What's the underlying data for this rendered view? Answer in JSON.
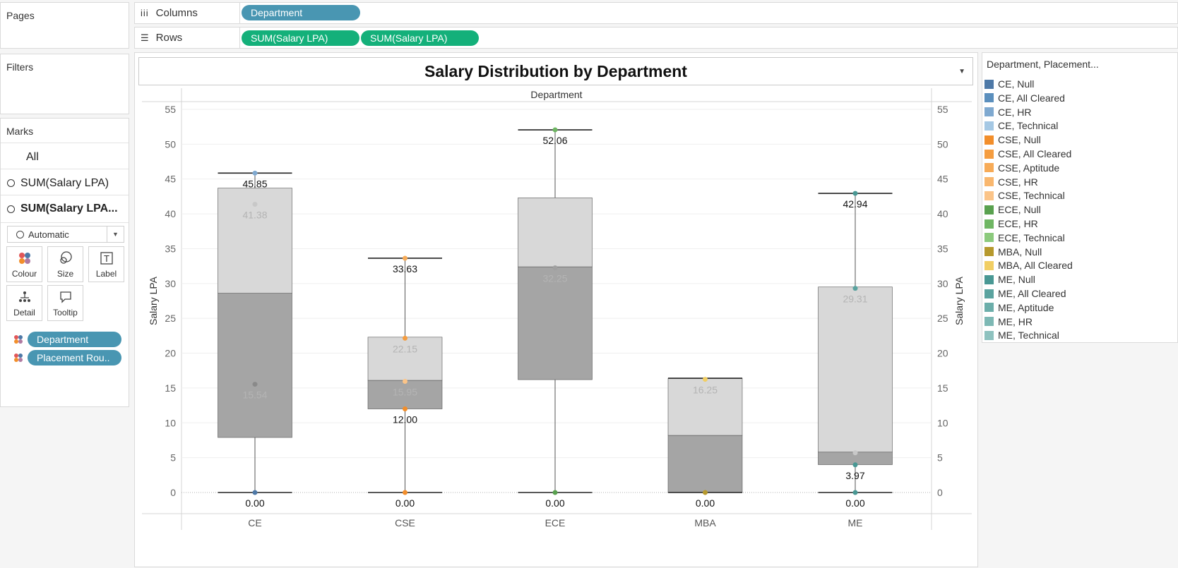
{
  "pages": {
    "title": "Pages"
  },
  "filters": {
    "title": "Filters"
  },
  "marks": {
    "title": "Marks",
    "rows": [
      "All",
      "SUM(Salary LPA)",
      "SUM(Salary LPA..."
    ],
    "mark_type": "Automatic",
    "buttons": [
      "Colour",
      "Size",
      "Label",
      "Detail",
      "Tooltip"
    ],
    "pills": [
      "Department",
      "Placement Rou.."
    ]
  },
  "shelves": {
    "columns": {
      "label": "Columns",
      "pills": [
        "Department"
      ]
    },
    "rows": {
      "label": "Rows",
      "pills": [
        "SUM(Salary LPA)",
        "SUM(Salary LPA)"
      ]
    }
  },
  "legend": {
    "title": "Department, Placement...",
    "items": [
      {
        "label": "CE, Null",
        "color": "#4e79a7"
      },
      {
        "label": "CE, All Cleared",
        "color": "#5b8fbd"
      },
      {
        "label": "CE, HR",
        "color": "#7fa9d0"
      },
      {
        "label": "CE, Technical",
        "color": "#a5c8e4"
      },
      {
        "label": "CSE, Null",
        "color": "#f28e2b"
      },
      {
        "label": "CSE, All Cleared",
        "color": "#f59d40"
      },
      {
        "label": "CSE, Aptitude",
        "color": "#f7ab57"
      },
      {
        "label": "CSE, HR",
        "color": "#f9b76e"
      },
      {
        "label": "CSE, Technical",
        "color": "#fbc488"
      },
      {
        "label": "ECE, Null",
        "color": "#59a14f"
      },
      {
        "label": "ECE, HR",
        "color": "#6fb663"
      },
      {
        "label": "ECE, Technical",
        "color": "#8cca7d"
      },
      {
        "label": "MBA, Null",
        "color": "#b6992d"
      },
      {
        "label": "MBA, All Cleared",
        "color": "#f1ce63"
      },
      {
        "label": "ME, Null",
        "color": "#499894"
      },
      {
        "label": "ME, All Cleared",
        "color": "#5aa39f"
      },
      {
        "label": "ME, Aptitude",
        "color": "#6caeaa"
      },
      {
        "label": "ME, HR",
        "color": "#7db8b4"
      },
      {
        "label": "ME, Technical",
        "color": "#8ec2bf"
      }
    ]
  },
  "chart_data": {
    "type": "box",
    "title": "Salary Distribution by Department",
    "column_header": "Department",
    "ylabel": "Salary LPA",
    "ylim": [
      0,
      55
    ],
    "yticks": [
      0,
      5,
      10,
      15,
      20,
      25,
      30,
      35,
      40,
      45,
      50,
      55
    ],
    "categories": [
      "CE",
      "CSE",
      "ECE",
      "MBA",
      "ME"
    ],
    "boxes": [
      {
        "category": "CE",
        "whisker_low": 0,
        "q1": 7.9,
        "median": 28.6,
        "q3": 43.7,
        "whisker_high": 45.85
      },
      {
        "category": "CSE",
        "whisker_low": 0,
        "q1": 12.0,
        "median": 16.1,
        "q3": 22.3,
        "whisker_high": 33.63
      },
      {
        "category": "ECE",
        "whisker_low": 0,
        "q1": 16.2,
        "median": 32.4,
        "q3": 42.3,
        "whisker_high": 52.06
      },
      {
        "category": "MBA",
        "whisker_low": 0,
        "q1": 0,
        "median": 8.2,
        "q3": 16.4,
        "whisker_high": 16.4
      },
      {
        "category": "ME",
        "whisker_low": 0,
        "q1": 4.0,
        "median": 5.8,
        "q3": 29.5,
        "whisker_high": 42.94
      }
    ],
    "points": [
      {
        "category": "CE",
        "value": 45.85,
        "label": "45.85",
        "color": "#7fa9d0",
        "emphasis": true
      },
      {
        "category": "CE",
        "value": 41.38,
        "label": "41.38",
        "color": "#c8c8c8",
        "emphasis": false
      },
      {
        "category": "CE",
        "value": 15.54,
        "label": "15.54",
        "color": "#8a8a8a",
        "emphasis": false
      },
      {
        "category": "CE",
        "value": 0,
        "label": "0.00",
        "color": "#4e79a7",
        "emphasis": true
      },
      {
        "category": "CSE",
        "value": 33.63,
        "label": "33.63",
        "color": "#f7ab57",
        "emphasis": true
      },
      {
        "category": "CSE",
        "value": 22.15,
        "label": "22.15",
        "color": "#f59d40",
        "emphasis": false
      },
      {
        "category": "CSE",
        "value": 15.95,
        "label": "15.95",
        "color": "#fbc488",
        "emphasis": false
      },
      {
        "category": "CSE",
        "value": 12.0,
        "label": "12.00",
        "color": "#f28e2b",
        "emphasis": true
      },
      {
        "category": "CSE",
        "value": 0,
        "label": "0.00",
        "color": "#f28e2b",
        "emphasis": true
      },
      {
        "category": "ECE",
        "value": 52.06,
        "label": "52.06",
        "color": "#6fb663",
        "emphasis": true
      },
      {
        "category": "ECE",
        "value": 32.25,
        "label": "32.25",
        "color": "#a0a0a0",
        "emphasis": false
      },
      {
        "category": "ECE",
        "value": 0,
        "label": "0.00",
        "color": "#59a14f",
        "emphasis": true
      },
      {
        "category": "MBA",
        "value": 16.25,
        "label": "16.25",
        "color": "#f1ce63",
        "emphasis": false
      },
      {
        "category": "MBA",
        "value": 0,
        "label": "0.00",
        "color": "#b6992d",
        "emphasis": true
      },
      {
        "category": "ME",
        "value": 42.94,
        "label": "42.94",
        "color": "#499894",
        "emphasis": true
      },
      {
        "category": "ME",
        "value": 29.31,
        "label": "29.31",
        "color": "#5aa39f",
        "emphasis": false
      },
      {
        "category": "ME",
        "value": 5.7,
        "label": "",
        "color": "#c8c8c8",
        "emphasis": false
      },
      {
        "category": "ME",
        "value": 3.97,
        "label": "3.97",
        "color": "#499894",
        "emphasis": true
      },
      {
        "category": "ME",
        "value": 0,
        "label": "0.00",
        "color": "#499894",
        "emphasis": true
      }
    ]
  }
}
